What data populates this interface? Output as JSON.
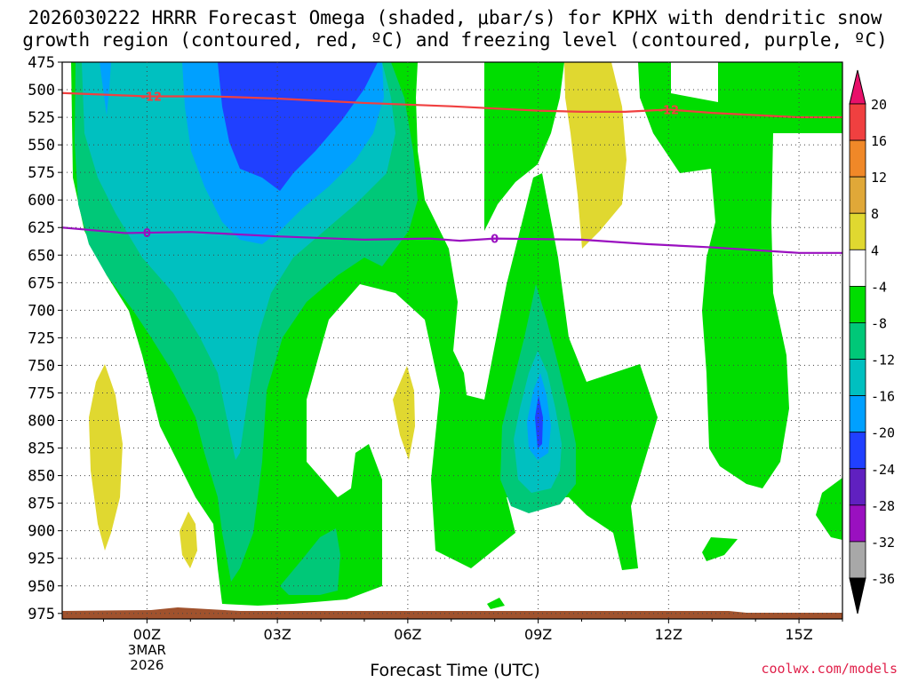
{
  "title_line1": "2026030222 HRRR Forecast Omega (shaded, μbar/s) for KPHX with dendritic snow",
  "title_line2": "growth region (contoured, red, ºC) and freezing level (contoured, purple, ºC)",
  "credit": "coolwx.com/models",
  "chart_data": {
    "type": "heatmap",
    "subtype": "time-height cross section",
    "xlabel": "Forecast Time (UTC)",
    "x_range_hours": [
      -1.95,
      16.0
    ],
    "x_ticks": [
      {
        "hour": 0,
        "label": "00Z",
        "sub": [
          "3MAR",
          "2026"
        ]
      },
      {
        "hour": 3,
        "label": "03Z",
        "sub": []
      },
      {
        "hour": 6,
        "label": "06Z",
        "sub": []
      },
      {
        "hour": 9,
        "label": "09Z",
        "sub": []
      },
      {
        "hour": 12,
        "label": "12Z",
        "sub": []
      },
      {
        "hour": 15,
        "label": "15Z",
        "sub": []
      }
    ],
    "y_range_hPa": [
      475,
      980
    ],
    "y_ticks": [
      475,
      500,
      525,
      550,
      575,
      600,
      625,
      650,
      675,
      700,
      725,
      750,
      775,
      800,
      825,
      850,
      875,
      900,
      925,
      950,
      975
    ],
    "colorbar": {
      "labels": [
        20,
        16,
        12,
        8,
        4,
        -4,
        -8,
        -12,
        -16,
        -20,
        -24,
        -28,
        -32,
        -36
      ],
      "colors": [
        "#e8106a",
        "#f04040",
        "#f08828",
        "#e0a838",
        "#e0d830",
        "#ffffff",
        "#00dd00",
        "#00c878",
        "#00c0c0",
        "#00a0ff",
        "#2040ff",
        "#6020c0",
        "#9a10c0",
        "#a8a8a8",
        "#000000"
      ]
    },
    "contours": [
      {
        "name": "dendritic-snow-growth",
        "label": "-12",
        "color": "#f04040",
        "points": [
          [
            -1.95,
            503
          ],
          [
            0,
            506
          ],
          [
            1.5,
            506
          ],
          [
            3,
            508
          ],
          [
            5,
            512
          ],
          [
            7,
            515
          ],
          [
            9,
            519
          ],
          [
            10,
            520
          ],
          [
            11,
            520
          ],
          [
            12,
            518
          ],
          [
            13,
            521
          ],
          [
            15,
            525
          ],
          [
            16,
            525
          ]
        ]
      },
      {
        "name": "freezing-level",
        "label": "0",
        "color": "#9a10c0",
        "points": [
          [
            -1.95,
            625
          ],
          [
            -0.5,
            630
          ],
          [
            1,
            629
          ],
          [
            3,
            633
          ],
          [
            5,
            636
          ],
          [
            6.5,
            635
          ],
          [
            7.2,
            637
          ],
          [
            8,
            635
          ],
          [
            10,
            636
          ],
          [
            11.5,
            640
          ],
          [
            13,
            643
          ],
          [
            15,
            648
          ],
          [
            16,
            648
          ]
        ]
      }
    ]
  }
}
